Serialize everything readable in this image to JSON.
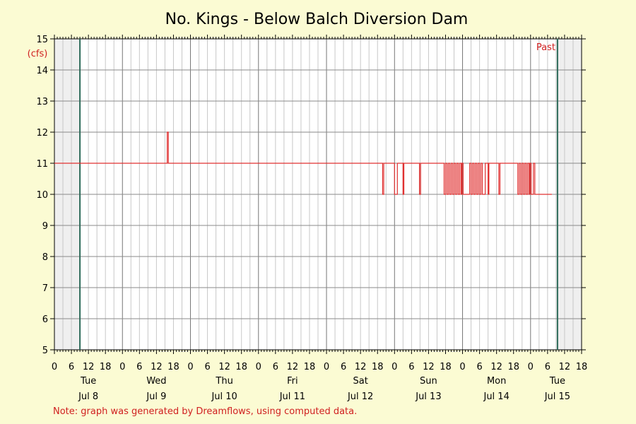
{
  "chart_data": {
    "type": "line",
    "title": "No. Kings - Below Balch Diversion Dam",
    "ylabel": "(cfs)",
    "ylim": [
      5,
      15
    ],
    "yticks": [
      5,
      6,
      7,
      8,
      9,
      10,
      11,
      12,
      13,
      14,
      15
    ],
    "x_unit": "hours",
    "xlim": [
      0,
      186
    ],
    "hour_tick_labels": [
      "0",
      "6",
      "12",
      "18"
    ],
    "days": [
      {
        "weekday": "Tue",
        "date": "Jul 8"
      },
      {
        "weekday": "Wed",
        "date": "Jul 9"
      },
      {
        "weekday": "Thu",
        "date": "Jul 10"
      },
      {
        "weekday": "Fri",
        "date": "Jul 11"
      },
      {
        "weekday": "Sat",
        "date": "Jul 12"
      },
      {
        "weekday": "Sun",
        "date": "Jul 13"
      },
      {
        "weekday": "Mon",
        "date": "Jul 14"
      },
      {
        "weekday": "Tue",
        "date": "Jul 15"
      }
    ],
    "grid": true,
    "shaded_regions": [
      [
        0,
        9
      ],
      [
        177.5,
        186
      ]
    ],
    "markers": [
      {
        "x": 9,
        "color": "#2e6b5a"
      },
      {
        "x": 177.5,
        "color": "#2e6b5a"
      }
    ],
    "past_label": "Past",
    "series": [
      {
        "color": "#e03030",
        "baseline": 11,
        "start": 0,
        "end": 175.5,
        "excursions": [
          {
            "from": 39.8,
            "to": 40.2,
            "value": 12
          },
          {
            "from": 115.8,
            "to": 116.2,
            "value": 10
          },
          {
            "from": 120.0,
            "to": 121.0,
            "value": 10
          },
          {
            "from": 123.0,
            "to": 123.3,
            "value": 10
          },
          {
            "from": 128.8,
            "to": 129.2,
            "value": 10
          },
          {
            "from": 137.5,
            "to": 138.0,
            "value": 10
          },
          {
            "from": 138.5,
            "to": 139.0,
            "value": 10
          },
          {
            "from": 139.5,
            "to": 140.0,
            "value": 10
          },
          {
            "from": 140.5,
            "to": 141.0,
            "value": 10
          },
          {
            "from": 141.5,
            "to": 142.0,
            "value": 10
          },
          {
            "from": 142.5,
            "to": 143.0,
            "value": 10
          },
          {
            "from": 143.5,
            "to": 143.8,
            "value": 10
          },
          {
            "from": 144.2,
            "to": 146.5,
            "value": 10
          },
          {
            "from": 147.0,
            "to": 147.5,
            "value": 10
          },
          {
            "from": 148.0,
            "to": 148.5,
            "value": 10
          },
          {
            "from": 149.0,
            "to": 149.5,
            "value": 10
          },
          {
            "from": 150.0,
            "to": 150.5,
            "value": 10
          },
          {
            "from": 151.0,
            "to": 152.0,
            "value": 10
          },
          {
            "from": 153.0,
            "to": 153.3,
            "value": 10
          },
          {
            "from": 156.8,
            "to": 157.2,
            "value": 10
          },
          {
            "from": 163.5,
            "to": 164.0,
            "value": 10
          },
          {
            "from": 164.5,
            "to": 165.0,
            "value": 10
          },
          {
            "from": 165.5,
            "to": 166.0,
            "value": 10
          },
          {
            "from": 166.5,
            "to": 167.0,
            "value": 10
          },
          {
            "from": 167.5,
            "to": 167.8,
            "value": 10
          },
          {
            "from": 168.2,
            "to": 169.0,
            "value": 10
          },
          {
            "from": 169.5,
            "to": 175.5,
            "value": 10
          }
        ]
      }
    ]
  },
  "note": "Note: graph was generated by Dreamflows, using computed data."
}
